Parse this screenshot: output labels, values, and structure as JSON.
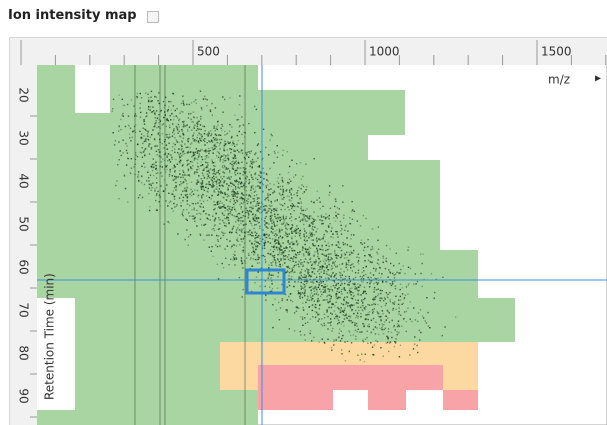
{
  "header": {
    "title": "Ion intensity map"
  },
  "x_axis": {
    "label": "m/z",
    "ticks": [
      "500",
      "1000",
      "1500"
    ]
  },
  "y_axis": {
    "label": "Retention Time (min)",
    "ticks": [
      "20",
      "30",
      "40",
      "50",
      "60",
      "70",
      "80",
      "90"
    ]
  }
}
